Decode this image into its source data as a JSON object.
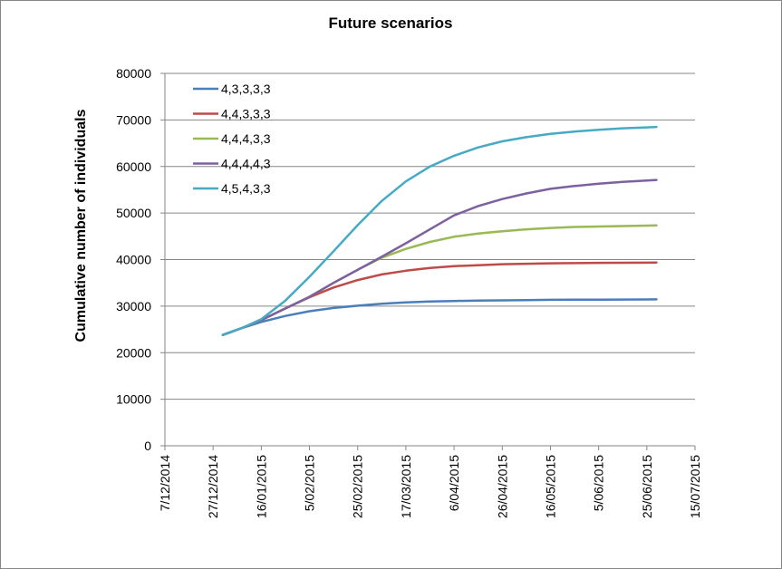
{
  "chart_data": {
    "type": "line",
    "title": "Future scenarios",
    "xlabel": "",
    "ylabel": "Cumulative  number  of individuals",
    "ylim": [
      0,
      80000
    ],
    "yticks": [
      0,
      10000,
      20000,
      30000,
      40000,
      50000,
      60000,
      70000,
      80000
    ],
    "ytick_labels": [
      "0",
      "10000",
      "20000",
      "30000",
      "40000",
      "50000",
      "60000",
      "70000",
      "80000"
    ],
    "xlim": [
      "2014-12-07",
      "2015-07-15"
    ],
    "xticks": [
      "2014-12-07",
      "2014-12-27",
      "2015-01-16",
      "2015-02-05",
      "2015-02-25",
      "2015-03-17",
      "2015-04-06",
      "2015-04-26",
      "2015-05-16",
      "2015-06-05",
      "2015-06-25",
      "2015-07-15"
    ],
    "xtick_labels": [
      "7/12/2014",
      "27/12/2014",
      "16/01/2015",
      "5/02/2015",
      "25/02/2015",
      "17/03/2015",
      "6/04/2015",
      "26/04/2015",
      "16/05/2015",
      "5/06/2015",
      "25/06/2015",
      "15/07/2015"
    ],
    "grid": "horizontal",
    "legend_position": "top-left",
    "colors": [
      "#4A7EBB",
      "#BE4B48",
      "#98B954",
      "#7D60A0",
      "#46AAC5"
    ],
    "series": [
      {
        "name": "4,3,3,3,3",
        "x": [
          "2014-12-31",
          "2015-01-08",
          "2015-01-16",
          "2015-01-26",
          "2015-02-05",
          "2015-02-15",
          "2015-02-25",
          "2015-03-07",
          "2015-03-17",
          "2015-03-27",
          "2015-04-06",
          "2015-04-16",
          "2015-04-26",
          "2015-05-06",
          "2015-05-16",
          "2015-05-26",
          "2015-06-05",
          "2015-06-15",
          "2015-06-25",
          "2015-06-29"
        ],
        "values": [
          23800,
          25300,
          26600,
          27900,
          28900,
          29600,
          30100,
          30500,
          30800,
          31000,
          31100,
          31200,
          31250,
          31300,
          31350,
          31380,
          31400,
          31420,
          31440,
          31450
        ]
      },
      {
        "name": "4,4,3,3,3",
        "x": [
          "2014-12-31",
          "2015-01-08",
          "2015-01-16",
          "2015-01-26",
          "2015-02-05",
          "2015-02-15",
          "2015-02-25",
          "2015-03-07",
          "2015-03-17",
          "2015-03-27",
          "2015-04-06",
          "2015-04-16",
          "2015-04-26",
          "2015-05-06",
          "2015-05-16",
          "2015-05-26",
          "2015-06-05",
          "2015-06-15",
          "2015-06-25",
          "2015-06-29"
        ],
        "values": [
          23800,
          25300,
          27000,
          29500,
          31900,
          34000,
          35600,
          36800,
          37600,
          38200,
          38600,
          38800,
          39000,
          39100,
          39200,
          39250,
          39300,
          39320,
          39340,
          39350
        ]
      },
      {
        "name": "4,4,4,3,3",
        "x": [
          "2014-12-31",
          "2015-01-08",
          "2015-01-16",
          "2015-01-26",
          "2015-02-05",
          "2015-02-15",
          "2015-02-25",
          "2015-03-07",
          "2015-03-17",
          "2015-03-27",
          "2015-04-06",
          "2015-04-16",
          "2015-04-26",
          "2015-05-06",
          "2015-05-16",
          "2015-05-26",
          "2015-06-05",
          "2015-06-15",
          "2015-06-25",
          "2015-06-29"
        ],
        "values": [
          23800,
          25300,
          27000,
          29500,
          32000,
          35000,
          37800,
          40400,
          42300,
          43800,
          44900,
          45600,
          46100,
          46500,
          46800,
          47000,
          47100,
          47200,
          47300,
          47350
        ]
      },
      {
        "name": "4,4,4,4,3",
        "x": [
          "2014-12-31",
          "2015-01-08",
          "2015-01-16",
          "2015-01-26",
          "2015-02-05",
          "2015-02-15",
          "2015-02-25",
          "2015-03-07",
          "2015-03-17",
          "2015-03-27",
          "2015-04-06",
          "2015-04-16",
          "2015-04-26",
          "2015-05-06",
          "2015-05-16",
          "2015-05-26",
          "2015-06-05",
          "2015-06-15",
          "2015-06-25",
          "2015-06-29"
        ],
        "values": [
          23800,
          25300,
          27000,
          29500,
          32000,
          35000,
          37800,
          40600,
          43500,
          46500,
          49500,
          51500,
          53000,
          54200,
          55200,
          55800,
          56300,
          56700,
          57000,
          57100
        ]
      },
      {
        "name": "4,5,4,3,3",
        "x": [
          "2014-12-31",
          "2015-01-08",
          "2015-01-16",
          "2015-01-26",
          "2015-02-05",
          "2015-02-15",
          "2015-02-25",
          "2015-03-07",
          "2015-03-17",
          "2015-03-27",
          "2015-04-06",
          "2015-04-16",
          "2015-04-26",
          "2015-05-06",
          "2015-05-16",
          "2015-05-26",
          "2015-06-05",
          "2015-06-15",
          "2015-06-25",
          "2015-06-29"
        ],
        "values": [
          23800,
          25300,
          27200,
          31200,
          36300,
          41800,
          47400,
          52600,
          56800,
          60000,
          62300,
          64100,
          65400,
          66300,
          67000,
          67500,
          67900,
          68200,
          68400,
          68500
        ]
      }
    ]
  }
}
